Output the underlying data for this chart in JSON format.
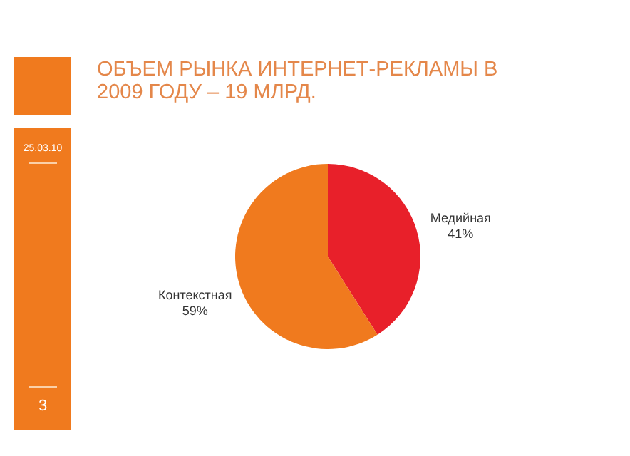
{
  "chart_data": {
    "type": "pie",
    "title": "ОБЪЕМ РЫНКА ИНТЕРНЕТ-РЕКЛАМЫ В 2009 ГОДУ – 19 МЛРД.",
    "categories": [
      "Медийная",
      "Контекстная"
    ],
    "values": [
      41,
      59
    ],
    "value_labels": [
      "41%",
      "59%"
    ],
    "colors": [
      "#e8202a",
      "#f07a1e"
    ],
    "annotations": [
      "25.03.10",
      "3"
    ]
  }
}
